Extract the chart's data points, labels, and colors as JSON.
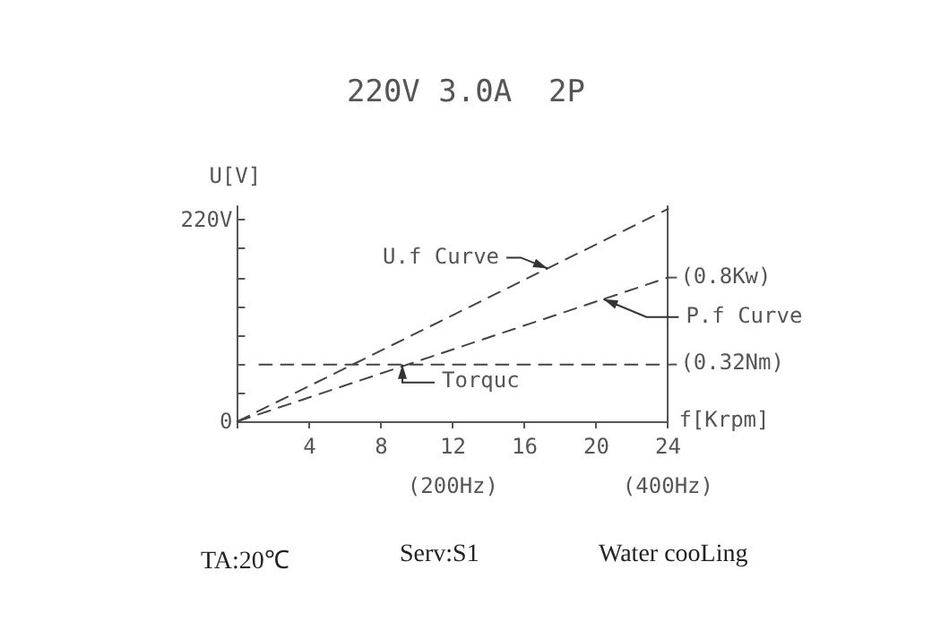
{
  "chart_data": {
    "type": "line",
    "title": "220V 3.0A  2P",
    "xlabel": "f[Krpm]",
    "ylabel": "U[V]",
    "series": [
      {
        "name": "U.f Curve",
        "color": "#444444",
        "x": [
          0,
          24
        ],
        "values": [
          0,
          232
        ]
      },
      {
        "name": "P.f Curve",
        "color": "#444444",
        "x": [
          0,
          24
        ],
        "values": [
          0,
          157
        ]
      },
      {
        "name": "Torquc",
        "color": "#444444",
        "x": [
          1.2,
          24
        ],
        "values": [
          62,
          62
        ]
      }
    ],
    "xlim": [
      0,
      24
    ],
    "xticks": [
      {
        "value": 0,
        "label": null
      },
      4,
      8,
      12,
      16,
      20,
      24
    ],
    "x2lim": [
      0,
      400
    ],
    "x2ticks": [
      {
        "value": 200,
        "label": "(200Hz)"
      },
      {
        "value": 400,
        "label": "(400Hz)"
      }
    ],
    "ylim": [
      0,
      235
    ],
    "yticks": [
      0,
      {
        "value": 31.4,
        "label": null
      },
      {
        "value": 62.9,
        "label": null
      },
      {
        "value": 94.3,
        "label": null
      },
      {
        "value": 125.7,
        "label": null
      },
      {
        "value": 157.1,
        "label": null
      },
      {
        "value": 188.6,
        "label": null
      },
      {
        "value": 220,
        "label": "220V"
      }
    ],
    "annotations": [
      "TA:20℃",
      "Serv:S1",
      "Water cooLing",
      {
        "text": "(0.8Kw)",
        "x": 24,
        "y": 157
      },
      {
        "text": "(0.32Nm)",
        "x": 24,
        "y": 62
      }
    ],
    "grid": false,
    "legend": false,
    "marker": "none",
    "line_style": "dashed"
  }
}
